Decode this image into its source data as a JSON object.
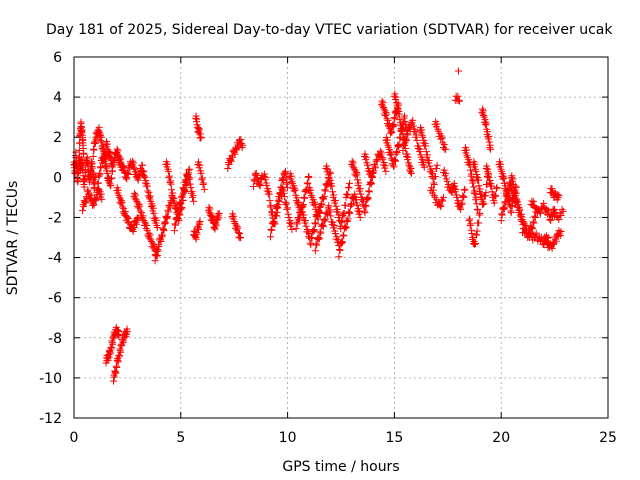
{
  "chart_data": {
    "type": "scatter",
    "title": "Day 181 of 2025, Sidereal Day-to-day VTEC variation (SDTVAR) for receiver ucak",
    "xlabel": "GPS time / hours",
    "ylabel": "SDTVAR / TECUs",
    "xlim": [
      0,
      25
    ],
    "ylim": [
      -12,
      6
    ],
    "xticks": [
      0,
      5,
      10,
      15,
      20,
      25
    ],
    "yticks": [
      -12,
      -10,
      -8,
      -6,
      -4,
      -2,
      0,
      2,
      4,
      6
    ],
    "grid": true,
    "marker": "+",
    "color": "#ff0000",
    "series": [
      {
        "name": "SDTVAR",
        "segments": [
          {
            "x0": 0.0,
            "x1": 0.3,
            "y": [
              0.8,
              0.2,
              1.1,
              0.5,
              -0.3,
              0.6,
              1.0,
              0.4
            ]
          },
          {
            "x0": 0.25,
            "x1": 0.45,
            "y": [
              1.5,
              2.2,
              2.6,
              2.3,
              1.8,
              1.2
            ]
          },
          {
            "x0": 0.3,
            "x1": 1.0,
            "y": [
              0.5,
              0.9,
              0.2,
              -0.4,
              0.3,
              1.0,
              0.6,
              -0.2,
              0.1,
              0.7,
              0.3,
              -0.5,
              0.0
            ]
          },
          {
            "x0": 0.4,
            "x1": 1.3,
            "y": [
              -1.5,
              -1.2,
              -0.8,
              -1.0,
              -1.4,
              -0.9,
              -0.6,
              -1.1
            ]
          },
          {
            "x0": 0.9,
            "x1": 1.5,
            "y": [
              1.2,
              1.8,
              2.1,
              2.4,
              2.0,
              1.6,
              1.2,
              0.9
            ]
          },
          {
            "x0": 1.1,
            "x1": 1.8,
            "y": [
              -0.5,
              0.2,
              0.8,
              1.0,
              0.5,
              0.0,
              -0.4,
              0.3
            ]
          },
          {
            "x0": 1.5,
            "x1": 2.2,
            "y": [
              1.8,
              1.3,
              1.0,
              0.6,
              0.9,
              1.4,
              1.0,
              0.5
            ]
          },
          {
            "x0": 1.5,
            "x1": 2.1,
            "y": [
              -9.1,
              -9.0,
              -8.8,
              -8.4,
              -8.0,
              -7.7,
              -7.6,
              -7.9
            ]
          },
          {
            "x0": 1.85,
            "x1": 2.5,
            "y": [
              -10.0,
              -9.7,
              -9.2,
              -8.8,
              -8.4,
              -8.0,
              -7.8,
              -7.7
            ]
          },
          {
            "x0": 2.0,
            "x1": 3.0,
            "y": [
              -0.5,
              -1.0,
              -1.4,
              -1.8,
              -2.1,
              -2.4,
              -2.6,
              -2.3,
              -2.0
            ]
          },
          {
            "x0": 2.1,
            "x1": 3.2,
            "y": [
              1.0,
              0.6,
              0.3,
              0.0,
              0.5,
              0.8,
              0.4,
              -0.1,
              0.2,
              0.6
            ]
          },
          {
            "x0": 2.8,
            "x1": 3.9,
            "y": [
              -0.8,
              -1.2,
              -1.6,
              -2.0,
              -2.4,
              -2.8,
              -3.2,
              -3.6,
              -3.9
            ]
          },
          {
            "x0": 3.2,
            "x1": 3.9,
            "y": [
              0.3,
              0.0,
              -0.6,
              -1.0,
              -1.5,
              -2.0,
              -2.5
            ]
          },
          {
            "x0": 3.8,
            "x1": 4.6,
            "y": [
              -4.0,
              -3.6,
              -3.2,
              -2.8,
              -2.3,
              -1.8,
              -1.4,
              -1.0
            ]
          },
          {
            "x0": 4.3,
            "x1": 5.4,
            "y": [
              0.8,
              0.3,
              -0.5,
              -1.1,
              -1.6,
              -2.0,
              -1.5,
              -0.8,
              -0.2,
              0.4
            ]
          },
          {
            "x0": 4.7,
            "x1": 5.6,
            "y": [
              -2.5,
              -2.0,
              -1.4,
              -0.8,
              -0.2,
              0.3,
              -0.5,
              -1.2
            ]
          },
          {
            "x0": 5.7,
            "x1": 5.95,
            "y": [
              3.1,
              2.5,
              2.2,
              2.0
            ]
          },
          {
            "x0": 5.6,
            "x1": 5.9,
            "y": [
              -2.7,
              -3.0,
              -2.6,
              -2.2
            ]
          },
          {
            "x0": 5.8,
            "x1": 6.1,
            "y": [
              0.8,
              0.2,
              -0.6
            ]
          },
          {
            "x0": 6.3,
            "x1": 6.8,
            "y": [
              -1.5,
              -1.9,
              -2.2,
              -2.5,
              -2.1,
              -1.8
            ]
          },
          {
            "x0": 7.2,
            "x1": 7.9,
            "y": [
              0.6,
              0.9,
              1.2,
              1.5,
              1.8,
              1.6
            ]
          },
          {
            "x0": 7.4,
            "x1": 7.8,
            "y": [
              -1.8,
              -2.3,
              -2.7,
              -3.0
            ]
          },
          {
            "x0": 8.4,
            "x1": 8.8,
            "y": [
              -0.3,
              0.2,
              -0.5,
              0.1
            ]
          },
          {
            "x0": 8.9,
            "x1": 10.0,
            "y": [
              0.2,
              -0.4,
              -1.0,
              -1.8,
              -2.4,
              -1.6,
              -0.8,
              -0.2,
              0.3,
              -0.5
            ]
          },
          {
            "x0": 9.2,
            "x1": 10.2,
            "y": [
              -2.8,
              -2.2,
              -1.6,
              -1.0,
              -0.6,
              -1.2,
              -2.0,
              -2.6
            ]
          },
          {
            "x0": 10.1,
            "x1": 11.0,
            "y": [
              0.2,
              -0.3,
              -0.8,
              -1.3,
              -1.8,
              -1.2,
              -0.6,
              0.0
            ]
          },
          {
            "x0": 10.4,
            "x1": 11.5,
            "y": [
              -2.4,
              -2.0,
              -1.6,
              -2.2,
              -2.8,
              -3.2,
              -2.6,
              -2.0,
              -1.5
            ]
          },
          {
            "x0": 11.0,
            "x1": 12.0,
            "y": [
              -0.5,
              -1.0,
              -1.5,
              -2.0,
              -1.4,
              -0.8,
              -0.3,
              0.2
            ]
          },
          {
            "x0": 11.3,
            "x1": 12.4,
            "y": [
              -3.5,
              -3.0,
              -2.5,
              -2.0,
              -1.5,
              -2.2,
              -2.8,
              -3.4
            ]
          },
          {
            "x0": 11.8,
            "x1": 12.9,
            "y": [
              0.6,
              0.0,
              -0.6,
              -1.2,
              -1.8,
              -2.4,
              -1.8,
              -1.0,
              -0.3
            ]
          },
          {
            "x0": 12.4,
            "x1": 13.4,
            "y": [
              -3.8,
              -3.2,
              -2.6,
              -2.0,
              -1.4,
              -0.8,
              -1.4,
              -2.0
            ]
          },
          {
            "x0": 13.0,
            "x1": 14.0,
            "y": [
              0.8,
              0.4,
              0.0,
              -0.6,
              -1.2,
              -1.6,
              -1.0,
              -0.4,
              0.2
            ]
          },
          {
            "x0": 13.6,
            "x1": 14.6,
            "y": [
              1.2,
              0.6,
              0.0,
              0.4,
              0.8,
              1.3,
              0.9,
              0.3
            ]
          },
          {
            "x0": 14.4,
            "x1": 15.2,
            "y": [
              3.8,
              3.4,
              3.0,
              2.6,
              2.2,
              2.8,
              3.3,
              3.6
            ]
          },
          {
            "x0": 14.6,
            "x1": 15.6,
            "y": [
              2.0,
              1.5,
              1.0,
              0.6,
              1.2,
              1.8,
              2.4,
              2.9,
              2.3
            ]
          },
          {
            "x0": 15.0,
            "x1": 15.8,
            "y": [
              4.2,
              3.6,
              3.0,
              2.4,
              1.8,
              1.2,
              0.6,
              0.2
            ]
          },
          {
            "x0": 15.4,
            "x1": 16.4,
            "y": [
              1.5,
              1.9,
              2.4,
              2.8,
              2.2,
              1.6,
              1.0,
              0.5
            ]
          },
          {
            "x0": 16.2,
            "x1": 17.0,
            "y": [
              2.5,
              2.0,
              1.4,
              0.8,
              0.2,
              -0.2,
              0.6
            ]
          },
          {
            "x0": 16.9,
            "x1": 17.4,
            "y": [
              2.8,
              2.3,
              1.8,
              1.4
            ]
          },
          {
            "x0": 16.7,
            "x1": 17.3,
            "y": [
              -0.5,
              -1.0,
              -1.5,
              -1.0
            ]
          },
          {
            "x0": 17.3,
            "x1": 17.8,
            "y": [
              0.4,
              -0.2,
              -0.8,
              -0.3
            ]
          },
          {
            "x0": 17.85,
            "x1": 18.0,
            "y": [
              5.3
            ]
          },
          {
            "x0": 17.85,
            "x1": 18.05,
            "y": [
              4.0,
              3.8
            ]
          },
          {
            "x0": 17.8,
            "x1": 18.3,
            "y": [
              -0.4,
              -1.0,
              -1.6,
              -1.2,
              -0.6
            ]
          },
          {
            "x0": 18.3,
            "x1": 18.9,
            "y": [
              1.5,
              1.0,
              0.5,
              -0.2,
              -0.9,
              -1.6
            ]
          },
          {
            "x0": 18.5,
            "x1": 19.0,
            "y": [
              -2.0,
              -2.8,
              -3.5,
              -2.6,
              -1.8
            ]
          },
          {
            "x0": 18.7,
            "x1": 19.4,
            "y": [
              0.8,
              0.3,
              -0.3,
              -0.9,
              -1.4,
              -0.6,
              0.2
            ]
          },
          {
            "x0": 19.1,
            "x1": 19.5,
            "y": [
              3.4,
              3.0,
              2.5,
              2.0,
              1.4
            ]
          },
          {
            "x0": 19.3,
            "x1": 19.8,
            "y": [
              0.6,
              0.0,
              -0.6,
              -1.2,
              -0.5
            ]
          },
          {
            "x0": 19.9,
            "x1": 20.7,
            "y": [
              0.8,
              0.3,
              -0.2,
              -0.7,
              -1.2,
              -1.6,
              -1.0,
              -0.5
            ]
          },
          {
            "x0": 20.0,
            "x1": 21.0,
            "y": [
              -2.0,
              -1.5,
              -1.0,
              -0.5,
              0.0,
              -0.6,
              -1.2,
              -1.8,
              -2.2
            ]
          },
          {
            "x0": 20.4,
            "x1": 21.6,
            "y": [
              -0.4,
              -0.9,
              -1.4,
              -1.9,
              -2.4,
              -2.8,
              -2.5,
              -2.0
            ]
          },
          {
            "x0": 21.0,
            "x1": 22.2,
            "y": [
              -2.6,
              -2.8,
              -3.0,
              -2.9,
              -3.1,
              -3.2,
              -3.0
            ]
          },
          {
            "x0": 21.4,
            "x1": 22.5,
            "y": [
              -1.2,
              -1.5,
              -1.8,
              -1.4,
              -1.7,
              -2.0,
              -1.6
            ]
          },
          {
            "x0": 22.0,
            "x1": 22.8,
            "y": [
              -3.0,
              -3.3,
              -3.5,
              -3.2,
              -2.9,
              -2.7
            ]
          },
          {
            "x0": 22.3,
            "x1": 22.7,
            "y": [
              -0.6,
              -0.8,
              -1.0,
              -0.9
            ]
          },
          {
            "x0": 22.4,
            "x1": 22.9,
            "y": [
              -1.8,
              -2.0,
              -1.7
            ]
          }
        ]
      }
    ]
  }
}
